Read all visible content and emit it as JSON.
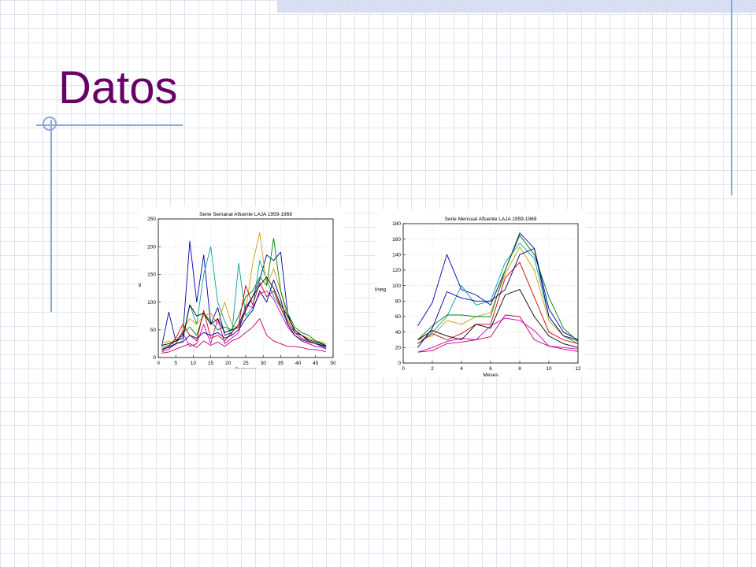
{
  "slide": {
    "title": "Datos",
    "colors": {
      "title": "#660066",
      "accent": "#8ea6dc",
      "band": "#c9d3ec"
    }
  },
  "chart_data": [
    {
      "type": "line",
      "title": "Serie Semanal Afluente LAJA 1959-1969",
      "xlabel": "Semanas",
      "ylabel": "m3/seg",
      "xlim": [
        0,
        50
      ],
      "ylim": [
        0,
        250
      ],
      "xticks": [
        0,
        5,
        10,
        15,
        20,
        25,
        30,
        35,
        40,
        45,
        50
      ],
      "yticks": [
        0,
        50,
        100,
        150,
        200,
        250
      ],
      "grid": true,
      "x": [
        1,
        3,
        5,
        7,
        9,
        11,
        13,
        15,
        17,
        19,
        21,
        23,
        25,
        27,
        29,
        31,
        33,
        35,
        37,
        39,
        41,
        43,
        45,
        47,
        48
      ],
      "series": [
        {
          "color": "#0000aa",
          "values": [
            20,
            82,
            30,
            40,
            210,
            100,
            185,
            60,
            90,
            40,
            45,
            60,
            90,
            110,
            140,
            185,
            175,
            190,
            80,
            45,
            40,
            30,
            25,
            20,
            18
          ]
        },
        {
          "color": "#00a0a0",
          "values": [
            15,
            20,
            25,
            30,
            95,
            60,
            150,
            200,
            100,
            65,
            40,
            170,
            75,
            90,
            175,
            140,
            110,
            90,
            60,
            40,
            30,
            25,
            20,
            18,
            16
          ]
        },
        {
          "color": "#c8a000",
          "values": [
            25,
            30,
            22,
            50,
            70,
            60,
            75,
            80,
            60,
            100,
            60,
            50,
            85,
            170,
            225,
            130,
            160,
            120,
            70,
            50,
            40,
            35,
            30,
            28,
            25
          ]
        },
        {
          "color": "#008000",
          "values": [
            18,
            22,
            30,
            45,
            55,
            40,
            80,
            65,
            50,
            55,
            50,
            75,
            110,
            120,
            145,
            130,
            215,
            120,
            80,
            55,
            45,
            40,
            30,
            25,
            22
          ]
        },
        {
          "color": "#d00000",
          "values": [
            12,
            20,
            35,
            60,
            40,
            30,
            85,
            35,
            40,
            30,
            45,
            60,
            130,
            95,
            135,
            110,
            120,
            90,
            65,
            45,
            35,
            30,
            25,
            22,
            20
          ]
        },
        {
          "color": "#cc00cc",
          "values": [
            10,
            15,
            25,
            45,
            20,
            25,
            60,
            25,
            70,
            25,
            35,
            45,
            95,
            90,
            115,
            120,
            105,
            80,
            55,
            40,
            30,
            25,
            20,
            18,
            15
          ]
        },
        {
          "color": "#000000",
          "values": [
            22,
            25,
            30,
            35,
            95,
            75,
            80,
            60,
            70,
            45,
            50,
            55,
            85,
            110,
            130,
            145,
            125,
            95,
            75,
            50,
            40,
            32,
            28,
            24,
            20
          ]
        },
        {
          "color": "#000080",
          "values": [
            15,
            18,
            25,
            28,
            40,
            35,
            45,
            40,
            45,
            35,
            40,
            50,
            70,
            85,
            120,
            100,
            140,
            105,
            60,
            40,
            32,
            28,
            25,
            22,
            20
          ]
        },
        {
          "color": "#c00060",
          "values": [
            8,
            10,
            15,
            20,
            25,
            18,
            30,
            22,
            28,
            20,
            30,
            35,
            45,
            55,
            70,
            40,
            30,
            25,
            20,
            20,
            18,
            15,
            14,
            12,
            10
          ]
        }
      ]
    },
    {
      "type": "line",
      "title": "Serie Mensual Afluente LAJA 1959-1969",
      "xlabel": "Meses",
      "ylabel": "m3/seg",
      "xlim": [
        0,
        12
      ],
      "ylim": [
        0,
        180
      ],
      "xticks": [
        0,
        2,
        4,
        6,
        8,
        10,
        12
      ],
      "yticks": [
        0,
        20,
        40,
        60,
        80,
        100,
        120,
        140,
        160,
        180
      ],
      "grid": true,
      "x": [
        1,
        2,
        3,
        4,
        5,
        6,
        7,
        8,
        9,
        10,
        11,
        12
      ],
      "series": [
        {
          "color": "#0000aa",
          "values": [
            48,
            78,
            140,
            95,
            88,
            75,
            120,
            168,
            148,
            70,
            40,
            30
          ]
        },
        {
          "color": "#00a0a0",
          "values": [
            25,
            40,
            60,
            100,
            75,
            80,
            130,
            155,
            135,
            60,
            35,
            25
          ]
        },
        {
          "color": "#c8a000",
          "values": [
            30,
            35,
            55,
            50,
            60,
            65,
            115,
            150,
            120,
            55,
            35,
            28
          ]
        },
        {
          "color": "#008000",
          "values": [
            30,
            48,
            62,
            62,
            60,
            60,
            120,
            165,
            140,
            85,
            45,
            28
          ]
        },
        {
          "color": "#d00000",
          "values": [
            25,
            38,
            30,
            38,
            50,
            50,
            110,
            130,
            85,
            40,
            30,
            25
          ]
        },
        {
          "color": "#cc00cc",
          "values": [
            14,
            20,
            28,
            32,
            30,
            48,
            58,
            55,
            42,
            22,
            20,
            18
          ]
        },
        {
          "color": "#000000",
          "values": [
            30,
            42,
            35,
            30,
            50,
            45,
            88,
            95,
            60,
            35,
            25,
            20
          ]
        },
        {
          "color": "#000080",
          "values": [
            20,
            45,
            92,
            84,
            80,
            80,
            95,
            140,
            148,
            60,
            35,
            30
          ]
        },
        {
          "color": "#c00060",
          "values": [
            14,
            16,
            25,
            27,
            30,
            34,
            62,
            60,
            30,
            22,
            18,
            15
          ]
        }
      ]
    }
  ]
}
